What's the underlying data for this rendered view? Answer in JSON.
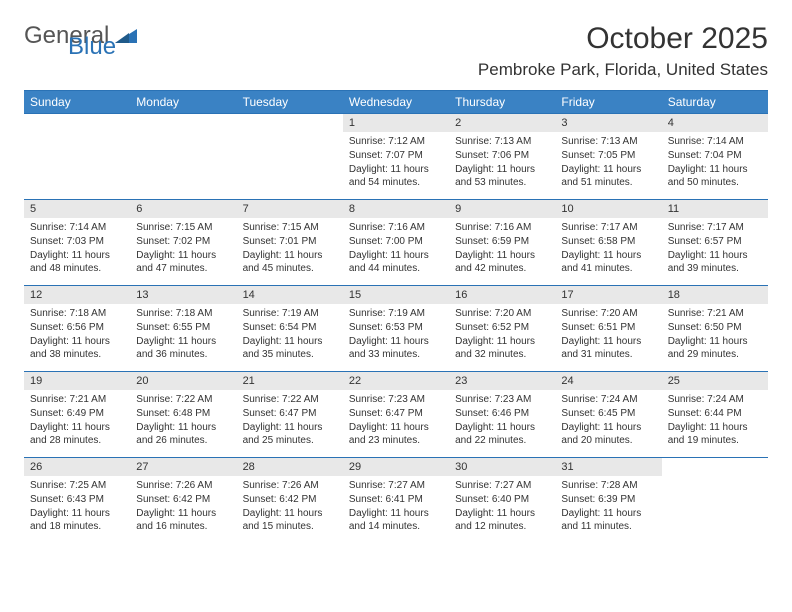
{
  "brand": {
    "part1": "General",
    "part2": "Blue",
    "color": "#2a72b5"
  },
  "title": "October 2025",
  "location": "Pembroke Park, Florida, United States",
  "weekdays": [
    "Sunday",
    "Monday",
    "Tuesday",
    "Wednesday",
    "Thursday",
    "Friday",
    "Saturday"
  ],
  "header_bg": "#3a82c4",
  "header_border": "#2a72b5",
  "daynum_bg": "#e8e8e8",
  "background": "#ffffff",
  "text_color": "#333333",
  "body_fontsize": 10,
  "weekday_fontsize": 12,
  "title_fontsize": 30,
  "location_fontsize": 17,
  "weeks": [
    [
      {
        "n": "",
        "sr": "",
        "ss": "",
        "dl": ""
      },
      {
        "n": "",
        "sr": "",
        "ss": "",
        "dl": ""
      },
      {
        "n": "",
        "sr": "",
        "ss": "",
        "dl": ""
      },
      {
        "n": "1",
        "sr": "Sunrise: 7:12 AM",
        "ss": "Sunset: 7:07 PM",
        "dl": "Daylight: 11 hours and 54 minutes."
      },
      {
        "n": "2",
        "sr": "Sunrise: 7:13 AM",
        "ss": "Sunset: 7:06 PM",
        "dl": "Daylight: 11 hours and 53 minutes."
      },
      {
        "n": "3",
        "sr": "Sunrise: 7:13 AM",
        "ss": "Sunset: 7:05 PM",
        "dl": "Daylight: 11 hours and 51 minutes."
      },
      {
        "n": "4",
        "sr": "Sunrise: 7:14 AM",
        "ss": "Sunset: 7:04 PM",
        "dl": "Daylight: 11 hours and 50 minutes."
      }
    ],
    [
      {
        "n": "5",
        "sr": "Sunrise: 7:14 AM",
        "ss": "Sunset: 7:03 PM",
        "dl": "Daylight: 11 hours and 48 minutes."
      },
      {
        "n": "6",
        "sr": "Sunrise: 7:15 AM",
        "ss": "Sunset: 7:02 PM",
        "dl": "Daylight: 11 hours and 47 minutes."
      },
      {
        "n": "7",
        "sr": "Sunrise: 7:15 AM",
        "ss": "Sunset: 7:01 PM",
        "dl": "Daylight: 11 hours and 45 minutes."
      },
      {
        "n": "8",
        "sr": "Sunrise: 7:16 AM",
        "ss": "Sunset: 7:00 PM",
        "dl": "Daylight: 11 hours and 44 minutes."
      },
      {
        "n": "9",
        "sr": "Sunrise: 7:16 AM",
        "ss": "Sunset: 6:59 PM",
        "dl": "Daylight: 11 hours and 42 minutes."
      },
      {
        "n": "10",
        "sr": "Sunrise: 7:17 AM",
        "ss": "Sunset: 6:58 PM",
        "dl": "Daylight: 11 hours and 41 minutes."
      },
      {
        "n": "11",
        "sr": "Sunrise: 7:17 AM",
        "ss": "Sunset: 6:57 PM",
        "dl": "Daylight: 11 hours and 39 minutes."
      }
    ],
    [
      {
        "n": "12",
        "sr": "Sunrise: 7:18 AM",
        "ss": "Sunset: 6:56 PM",
        "dl": "Daylight: 11 hours and 38 minutes."
      },
      {
        "n": "13",
        "sr": "Sunrise: 7:18 AM",
        "ss": "Sunset: 6:55 PM",
        "dl": "Daylight: 11 hours and 36 minutes."
      },
      {
        "n": "14",
        "sr": "Sunrise: 7:19 AM",
        "ss": "Sunset: 6:54 PM",
        "dl": "Daylight: 11 hours and 35 minutes."
      },
      {
        "n": "15",
        "sr": "Sunrise: 7:19 AM",
        "ss": "Sunset: 6:53 PM",
        "dl": "Daylight: 11 hours and 33 minutes."
      },
      {
        "n": "16",
        "sr": "Sunrise: 7:20 AM",
        "ss": "Sunset: 6:52 PM",
        "dl": "Daylight: 11 hours and 32 minutes."
      },
      {
        "n": "17",
        "sr": "Sunrise: 7:20 AM",
        "ss": "Sunset: 6:51 PM",
        "dl": "Daylight: 11 hours and 31 minutes."
      },
      {
        "n": "18",
        "sr": "Sunrise: 7:21 AM",
        "ss": "Sunset: 6:50 PM",
        "dl": "Daylight: 11 hours and 29 minutes."
      }
    ],
    [
      {
        "n": "19",
        "sr": "Sunrise: 7:21 AM",
        "ss": "Sunset: 6:49 PM",
        "dl": "Daylight: 11 hours and 28 minutes."
      },
      {
        "n": "20",
        "sr": "Sunrise: 7:22 AM",
        "ss": "Sunset: 6:48 PM",
        "dl": "Daylight: 11 hours and 26 minutes."
      },
      {
        "n": "21",
        "sr": "Sunrise: 7:22 AM",
        "ss": "Sunset: 6:47 PM",
        "dl": "Daylight: 11 hours and 25 minutes."
      },
      {
        "n": "22",
        "sr": "Sunrise: 7:23 AM",
        "ss": "Sunset: 6:47 PM",
        "dl": "Daylight: 11 hours and 23 minutes."
      },
      {
        "n": "23",
        "sr": "Sunrise: 7:23 AM",
        "ss": "Sunset: 6:46 PM",
        "dl": "Daylight: 11 hours and 22 minutes."
      },
      {
        "n": "24",
        "sr": "Sunrise: 7:24 AM",
        "ss": "Sunset: 6:45 PM",
        "dl": "Daylight: 11 hours and 20 minutes."
      },
      {
        "n": "25",
        "sr": "Sunrise: 7:24 AM",
        "ss": "Sunset: 6:44 PM",
        "dl": "Daylight: 11 hours and 19 minutes."
      }
    ],
    [
      {
        "n": "26",
        "sr": "Sunrise: 7:25 AM",
        "ss": "Sunset: 6:43 PM",
        "dl": "Daylight: 11 hours and 18 minutes."
      },
      {
        "n": "27",
        "sr": "Sunrise: 7:26 AM",
        "ss": "Sunset: 6:42 PM",
        "dl": "Daylight: 11 hours and 16 minutes."
      },
      {
        "n": "28",
        "sr": "Sunrise: 7:26 AM",
        "ss": "Sunset: 6:42 PM",
        "dl": "Daylight: 11 hours and 15 minutes."
      },
      {
        "n": "29",
        "sr": "Sunrise: 7:27 AM",
        "ss": "Sunset: 6:41 PM",
        "dl": "Daylight: 11 hours and 14 minutes."
      },
      {
        "n": "30",
        "sr": "Sunrise: 7:27 AM",
        "ss": "Sunset: 6:40 PM",
        "dl": "Daylight: 11 hours and 12 minutes."
      },
      {
        "n": "31",
        "sr": "Sunrise: 7:28 AM",
        "ss": "Sunset: 6:39 PM",
        "dl": "Daylight: 11 hours and 11 minutes."
      },
      {
        "n": "",
        "sr": "",
        "ss": "",
        "dl": ""
      }
    ]
  ]
}
